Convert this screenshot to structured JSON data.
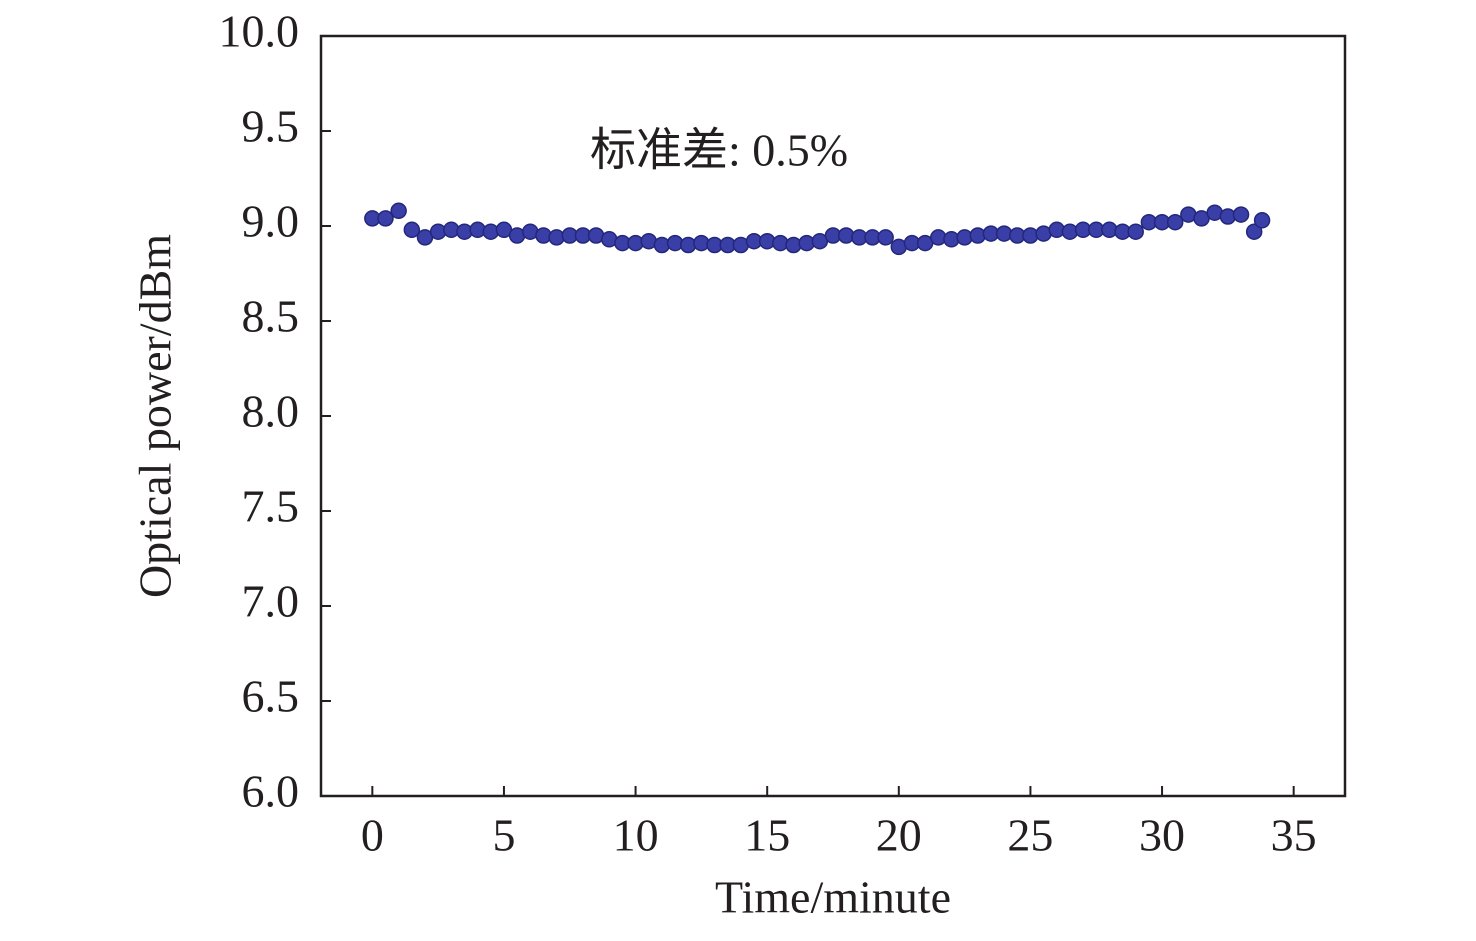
{
  "chart_data": {
    "type": "scatter",
    "xlabel": "Time/minute",
    "ylabel": "Optical power/dBm",
    "annotation": "标准差: 0.5%",
    "xlim": [
      -1.95,
      36.95
    ],
    "xticks": [
      0,
      5,
      10,
      15,
      20,
      25,
      30,
      35
    ],
    "ylim": [
      6.0,
      10.0
    ],
    "yticks": [
      {
        "value": 6.0,
        "label": "6.0"
      },
      {
        "value": 6.5,
        "label": "6.5"
      },
      {
        "value": 7.0,
        "label": "7.0"
      },
      {
        "value": 7.5,
        "label": "7.5"
      },
      {
        "value": 8.0,
        "label": "8.0"
      },
      {
        "value": 8.5,
        "label": "8.5"
      },
      {
        "value": 9.0,
        "label": "9.0"
      },
      {
        "value": 9.5,
        "label": "9.5"
      },
      {
        "value": 10.0,
        "label": "10.0"
      }
    ],
    "series": [
      {
        "color": "#3a3fa8",
        "x": [
          0,
          0.5,
          1,
          1.5,
          2,
          2.5,
          3,
          3.5,
          4,
          4.5,
          5,
          5.5,
          6,
          6.5,
          7,
          7.5,
          8,
          8.5,
          9,
          9.5,
          10,
          10.5,
          11,
          11.5,
          12,
          12.5,
          13,
          13.5,
          14,
          14.5,
          15,
          15.5,
          16,
          16.5,
          17,
          17.5,
          18,
          18.5,
          19,
          19.5,
          20,
          20.5,
          21,
          21.5,
          22,
          22.5,
          23,
          23.5,
          24,
          24.5,
          25,
          25.5,
          26,
          26.5,
          27,
          27.5,
          28,
          28.5,
          29,
          29.5,
          30,
          30.5,
          31,
          31.5,
          32,
          32.5,
          33,
          33.5,
          33.8
        ],
        "values": [
          9.04,
          9.04,
          9.08,
          8.98,
          8.94,
          8.97,
          8.98,
          8.97,
          8.98,
          8.97,
          8.98,
          8.95,
          8.97,
          8.95,
          8.94,
          8.95,
          8.95,
          8.95,
          8.93,
          8.91,
          8.91,
          8.92,
          8.9,
          8.91,
          8.9,
          8.91,
          8.9,
          8.9,
          8.9,
          8.92,
          8.92,
          8.91,
          8.9,
          8.91,
          8.92,
          8.95,
          8.95,
          8.94,
          8.94,
          8.94,
          8.89,
          8.91,
          8.91,
          8.94,
          8.93,
          8.94,
          8.95,
          8.96,
          8.96,
          8.95,
          8.95,
          8.96,
          8.98,
          8.97,
          8.98,
          8.98,
          8.98,
          8.97,
          8.97,
          9.02,
          9.02,
          9.02,
          9.06,
          9.04,
          9.07,
          9.05,
          9.06,
          8.97,
          9.03
        ]
      }
    ]
  }
}
